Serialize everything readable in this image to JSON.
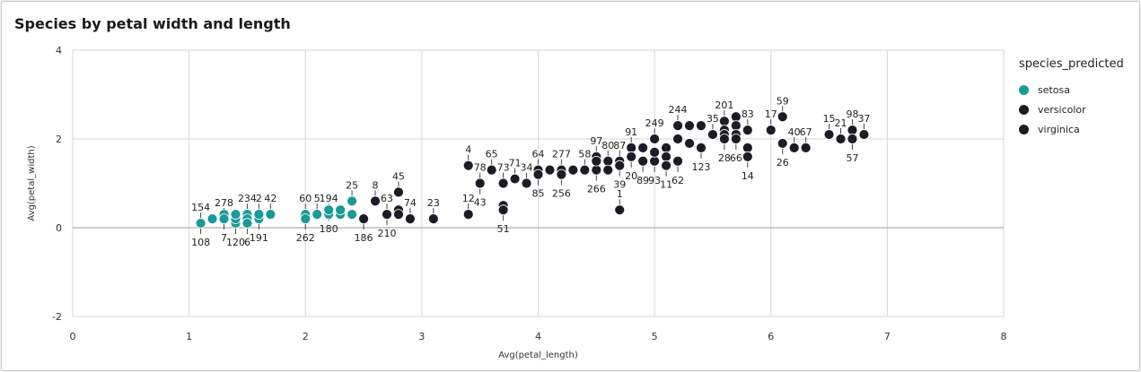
{
  "chart_data": {
    "type": "scatter",
    "title": "Species by petal width and length",
    "xlabel": "Avg(petal_length)",
    "ylabel": "Avg(petal_width)",
    "xlim": [
      0,
      8
    ],
    "ylim": [
      -2,
      4
    ],
    "x_ticks": [
      "0",
      "1",
      "2",
      "3",
      "4",
      "5",
      "6",
      "7",
      "8"
    ],
    "y_ticks": [
      "-2",
      "0",
      "2",
      "4"
    ],
    "grid": true,
    "legend": {
      "title": "species_predicted",
      "position": "right",
      "entries": [
        {
          "name": "setosa",
          "color": "#1a9a9a"
        },
        {
          "name": "versicolor",
          "color": "#1e1a26"
        },
        {
          "name": "virginica",
          "color": "#1e1a26"
        }
      ]
    },
    "series": [
      {
        "name": "setosa",
        "color": "#1a9a9a",
        "points": [
          {
            "x": 1.1,
            "y": 0.1,
            "label": "154",
            "pos": "above"
          },
          {
            "x": 1.1,
            "y": 0.1,
            "label": "108",
            "pos": "below"
          },
          {
            "x": 1.2,
            "y": 0.2
          },
          {
            "x": 1.3,
            "y": 0.2,
            "label": "278",
            "pos": "above"
          },
          {
            "x": 1.3,
            "y": 0.3
          },
          {
            "x": 1.3,
            "y": 0.2,
            "label": "7",
            "pos": "below"
          },
          {
            "x": 1.4,
            "y": 0.1,
            "label": "120",
            "pos": "below"
          },
          {
            "x": 1.4,
            "y": 0.2
          },
          {
            "x": 1.4,
            "y": 0.3
          },
          {
            "x": 1.5,
            "y": 0.3,
            "label": "234",
            "pos": "above"
          },
          {
            "x": 1.5,
            "y": 0.2
          },
          {
            "x": 1.5,
            "y": 0.1,
            "label": "6",
            "pos": "below"
          },
          {
            "x": 1.6,
            "y": 0.2,
            "label": "191",
            "pos": "below"
          },
          {
            "x": 1.6,
            "y": 0.3,
            "label": "2",
            "pos": "above"
          },
          {
            "x": 1.7,
            "y": 0.3,
            "label": "42",
            "pos": "above"
          },
          {
            "x": 2.0,
            "y": 0.3,
            "label": "60",
            "pos": "above"
          },
          {
            "x": 2.0,
            "y": 0.2,
            "label": "262",
            "pos": "below"
          },
          {
            "x": 2.1,
            "y": 0.3,
            "label": "5",
            "pos": "above"
          },
          {
            "x": 2.2,
            "y": 0.3,
            "label": "194",
            "pos": "above"
          },
          {
            "x": 2.2,
            "y": 0.4,
            "label": "180",
            "pos": "below"
          },
          {
            "x": 2.3,
            "y": 0.3
          },
          {
            "x": 2.3,
            "y": 0.4
          },
          {
            "x": 2.4,
            "y": 0.3
          },
          {
            "x": 2.4,
            "y": 0.6,
            "label": "25",
            "pos": "above"
          }
        ]
      },
      {
        "name": "versicolor",
        "color": "#1e1a26",
        "points": [
          {
            "x": 2.5,
            "y": 0.2,
            "label": "186",
            "pos": "below"
          },
          {
            "x": 2.6,
            "y": 0.6,
            "label": "8",
            "pos": "above"
          },
          {
            "x": 2.7,
            "y": 0.3,
            "label": "63",
            "pos": "above"
          },
          {
            "x": 2.7,
            "y": 0.3,
            "label": "210",
            "pos": "below"
          },
          {
            "x": 2.8,
            "y": 0.8,
            "label": "45",
            "pos": "above"
          },
          {
            "x": 2.8,
            "y": 0.4
          },
          {
            "x": 2.8,
            "y": 0.3
          },
          {
            "x": 2.9,
            "y": 0.2,
            "label": "74",
            "pos": "above"
          },
          {
            "x": 3.1,
            "y": 0.2,
            "label": "23",
            "pos": "above"
          },
          {
            "x": 3.4,
            "y": 1.4,
            "label": "4",
            "pos": "above"
          },
          {
            "x": 3.4,
            "y": 0.3,
            "label": "12",
            "pos": "above"
          },
          {
            "x": 3.5,
            "y": 1.0,
            "label": "78",
            "pos": "above"
          },
          {
            "x": 3.5,
            "y": 1.0,
            "label": "43",
            "pos": "below"
          },
          {
            "x": 3.6,
            "y": 1.3,
            "label": "65",
            "pos": "above"
          },
          {
            "x": 3.7,
            "y": 1.0,
            "label": "73",
            "pos": "above"
          },
          {
            "x": 3.7,
            "y": 0.5
          },
          {
            "x": 3.7,
            "y": 0.4,
            "label": "51",
            "pos": "below"
          },
          {
            "x": 3.8,
            "y": 1.1,
            "label": "71",
            "pos": "above"
          },
          {
            "x": 3.9,
            "y": 1.0,
            "label": "34",
            "pos": "above"
          },
          {
            "x": 4.0,
            "y": 1.3,
            "label": "64",
            "pos": "above"
          },
          {
            "x": 4.0,
            "y": 1.2,
            "label": "85",
            "pos": "below"
          },
          {
            "x": 4.1,
            "y": 1.3
          },
          {
            "x": 4.2,
            "y": 1.3,
            "label": "277",
            "pos": "above"
          },
          {
            "x": 4.2,
            "y": 1.2,
            "label": "256",
            "pos": "below"
          },
          {
            "x": 4.3,
            "y": 1.3
          },
          {
            "x": 4.4,
            "y": 1.3,
            "label": "58",
            "pos": "above"
          },
          {
            "x": 4.5,
            "y": 1.6,
            "label": "97",
            "pos": "above"
          },
          {
            "x": 4.5,
            "y": 1.3,
            "label": "266",
            "pos": "below"
          },
          {
            "x": 4.5,
            "y": 1.5
          },
          {
            "x": 4.6,
            "y": 1.5,
            "label": "80",
            "pos": "above"
          },
          {
            "x": 4.6,
            "y": 1.3
          },
          {
            "x": 4.7,
            "y": 1.5,
            "label": "87",
            "pos": "above"
          },
          {
            "x": 4.7,
            "y": 1.4,
            "label": "39",
            "pos": "below"
          },
          {
            "x": 4.7,
            "y": 0.4,
            "label": "1",
            "pos": "above"
          },
          {
            "x": 4.8,
            "y": 1.8,
            "label": "91",
            "pos": "above"
          },
          {
            "x": 4.8,
            "y": 1.6,
            "label": "20",
            "pos": "below"
          },
          {
            "x": 4.9,
            "y": 1.5,
            "label": "89",
            "pos": "below"
          },
          {
            "x": 4.9,
            "y": 1.8
          }
        ]
      },
      {
        "name": "virginica",
        "color": "#1e1a26",
        "points": [
          {
            "x": 5.0,
            "y": 2.0,
            "label": "249",
            "pos": "above"
          },
          {
            "x": 5.0,
            "y": 1.5,
            "label": "93",
            "pos": "below"
          },
          {
            "x": 5.0,
            "y": 1.7
          },
          {
            "x": 5.1,
            "y": 1.8
          },
          {
            "x": 5.1,
            "y": 1.6
          },
          {
            "x": 5.1,
            "y": 1.4,
            "label": "11",
            "pos": "below"
          },
          {
            "x": 5.2,
            "y": 2.3,
            "label": "244",
            "pos": "above"
          },
          {
            "x": 5.2,
            "y": 2.0
          },
          {
            "x": 5.2,
            "y": 1.5,
            "label": "62",
            "pos": "below"
          },
          {
            "x": 5.3,
            "y": 2.3
          },
          {
            "x": 5.3,
            "y": 1.9
          },
          {
            "x": 5.4,
            "y": 2.3
          },
          {
            "x": 5.4,
            "y": 1.8,
            "label": "123",
            "pos": "below"
          },
          {
            "x": 5.5,
            "y": 2.1,
            "label": "35",
            "pos": "above"
          },
          {
            "x": 5.6,
            "y": 2.4,
            "label": "201",
            "pos": "above"
          },
          {
            "x": 5.6,
            "y": 2.2
          },
          {
            "x": 5.6,
            "y": 2.1
          },
          {
            "x": 5.6,
            "y": 2.0,
            "label": "28",
            "pos": "below"
          },
          {
            "x": 5.7,
            "y": 2.5
          },
          {
            "x": 5.7,
            "y": 2.3
          },
          {
            "x": 5.7,
            "y": 2.1
          },
          {
            "x": 5.7,
            "y": 2.0,
            "label": "66",
            "pos": "below"
          },
          {
            "x": 5.8,
            "y": 2.2,
            "label": "83",
            "pos": "above"
          },
          {
            "x": 5.8,
            "y": 1.8
          },
          {
            "x": 5.8,
            "y": 1.6,
            "label": "14",
            "pos": "below"
          },
          {
            "x": 6.0,
            "y": 2.2,
            "label": "17",
            "pos": "above"
          },
          {
            "x": 6.1,
            "y": 2.5,
            "label": "59",
            "pos": "above"
          },
          {
            "x": 6.1,
            "y": 1.9,
            "label": "26",
            "pos": "below"
          },
          {
            "x": 6.2,
            "y": 1.8,
            "label": "40",
            "pos": "above"
          },
          {
            "x": 6.3,
            "y": 1.8,
            "label": "67",
            "pos": "above"
          },
          {
            "x": 6.5,
            "y": 2.1,
            "label": "15",
            "pos": "above"
          },
          {
            "x": 6.6,
            "y": 2.0,
            "label": "21",
            "pos": "above"
          },
          {
            "x": 6.7,
            "y": 2.2,
            "label": "98",
            "pos": "above"
          },
          {
            "x": 6.7,
            "y": 2.0,
            "label": "57",
            "pos": "below"
          },
          {
            "x": 6.8,
            "y": 2.1,
            "label": "37",
            "pos": "above"
          }
        ]
      }
    ]
  }
}
